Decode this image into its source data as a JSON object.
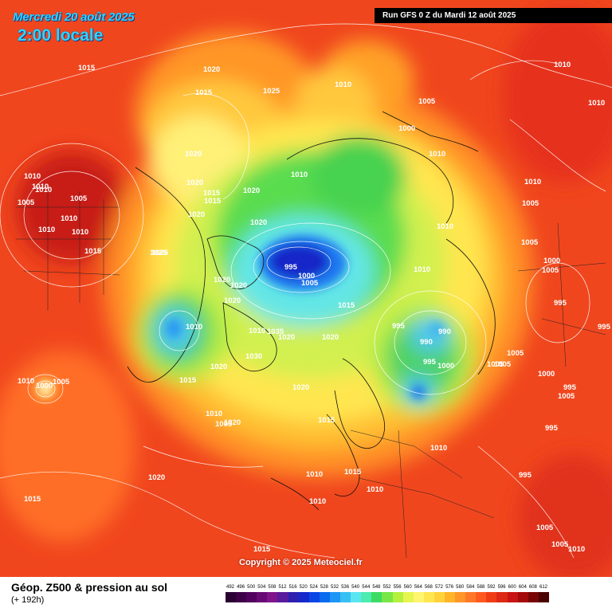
{
  "header": {
    "date": "Mercredi 20 août 2025",
    "time": "2:00 locale",
    "run_info": "Run GFS 0 Z du Mardi 12 août 2025"
  },
  "map": {
    "copyright": "Copyright © 2025 Meteociel.fr",
    "isobar_labels": [
      {
        "text": "1020"
      },
      {
        "text": "1015"
      },
      {
        "text": "1020"
      },
      {
        "text": "1015"
      },
      {
        "text": "1025"
      },
      {
        "text": "1010"
      },
      {
        "text": "1005"
      },
      {
        "text": "1010"
      },
      {
        "text": "1010"
      },
      {
        "text": "1000"
      },
      {
        "text": "1010"
      },
      {
        "text": "1020"
      },
      {
        "text": "1010"
      },
      {
        "text": "1020"
      },
      {
        "text": "1015"
      },
      {
        "text": "1015"
      },
      {
        "text": "1020"
      },
      {
        "text": "1010"
      },
      {
        "text": "1010"
      },
      {
        "text": "1005"
      },
      {
        "text": "1010"
      },
      {
        "text": "1005"
      },
      {
        "text": "1010"
      },
      {
        "text": "1010"
      },
      {
        "text": "1015"
      },
      {
        "text": "1010"
      },
      {
        "text": "1025"
      },
      {
        "text": "1020"
      },
      {
        "text": "1025"
      },
      {
        "text": "1020"
      },
      {
        "text": "1020"
      },
      {
        "text": "1020"
      },
      {
        "text": "1010"
      },
      {
        "text": "1010"
      },
      {
        "text": "995"
      },
      {
        "text": "1000"
      },
      {
        "text": "1005"
      },
      {
        "text": "1010"
      },
      {
        "text": "1005"
      },
      {
        "text": "1000"
      },
      {
        "text": "1005"
      },
      {
        "text": "1005"
      },
      {
        "text": "1015"
      },
      {
        "text": "995"
      },
      {
        "text": "990"
      },
      {
        "text": "990"
      },
      {
        "text": "995"
      },
      {
        "text": "1000"
      },
      {
        "text": "1005"
      },
      {
        "text": "1005"
      },
      {
        "text": "1000"
      },
      {
        "text": "995"
      },
      {
        "text": "995"
      },
      {
        "text": "995"
      },
      {
        "text": "1020"
      },
      {
        "text": "1010"
      },
      {
        "text": "1035"
      },
      {
        "text": "1020"
      },
      {
        "text": "1020"
      },
      {
        "text": "1030"
      },
      {
        "text": "1010"
      },
      {
        "text": "1015"
      },
      {
        "text": "1020"
      },
      {
        "text": "1010"
      },
      {
        "text": "1020"
      },
      {
        "text": "1005"
      },
      {
        "text": "1010"
      },
      {
        "text": "1000"
      },
      {
        "text": "1005"
      },
      {
        "text": "1015"
      },
      {
        "text": "1015"
      },
      {
        "text": "1010"
      },
      {
        "text": "1010"
      },
      {
        "text": "1010"
      },
      {
        "text": "1020"
      },
      {
        "text": "1015"
      },
      {
        "text": "995"
      },
      {
        "text": "995"
      },
      {
        "text": "1005"
      },
      {
        "text": "1005"
      },
      {
        "text": "1010"
      },
      {
        "text": "1015"
      },
      {
        "text": "1010"
      },
      {
        "text": "1005"
      },
      {
        "text": "1005"
      }
    ]
  },
  "footer": {
    "title": "Géop. Z500 & pression au sol",
    "forecast_hour": "(+ 192h)",
    "scale": [
      {
        "label": "492",
        "color": "#2a0033"
      },
      {
        "label": "496",
        "color": "#3d0048"
      },
      {
        "label": "500",
        "color": "#52005e"
      },
      {
        "label": "504",
        "color": "#680a74"
      },
      {
        "label": "508",
        "color": "#80148a"
      },
      {
        "label": "512",
        "color": "#5a1a9c"
      },
      {
        "label": "516",
        "color": "#2d1fb0"
      },
      {
        "label": "520",
        "color": "#1428cc"
      },
      {
        "label": "524",
        "color": "#0a46e6"
      },
      {
        "label": "528",
        "color": "#0a6af0"
      },
      {
        "label": "532",
        "color": "#1e96f5"
      },
      {
        "label": "536",
        "color": "#38c0f5"
      },
      {
        "label": "540",
        "color": "#5ae6f0"
      },
      {
        "label": "544",
        "color": "#4cebb0"
      },
      {
        "label": "548",
        "color": "#3cdc64"
      },
      {
        "label": "552",
        "color": "#78e646"
      },
      {
        "label": "556",
        "color": "#b4f03c"
      },
      {
        "label": "560",
        "color": "#e6f550"
      },
      {
        "label": "564",
        "color": "#fff56e"
      },
      {
        "label": "568",
        "color": "#ffe650"
      },
      {
        "label": "572",
        "color": "#ffd23c"
      },
      {
        "label": "576",
        "color": "#ffb428"
      },
      {
        "label": "580",
        "color": "#ff9628"
      },
      {
        "label": "584",
        "color": "#ff7828"
      },
      {
        "label": "588",
        "color": "#ff5a1e"
      },
      {
        "label": "592",
        "color": "#f03c14"
      },
      {
        "label": "596",
        "color": "#dc2814"
      },
      {
        "label": "600",
        "color": "#c81414"
      },
      {
        "label": "604",
        "color": "#a50a0a"
      },
      {
        "label": "608",
        "color": "#780505"
      },
      {
        "label": "612",
        "color": "#4b0000"
      }
    ]
  }
}
